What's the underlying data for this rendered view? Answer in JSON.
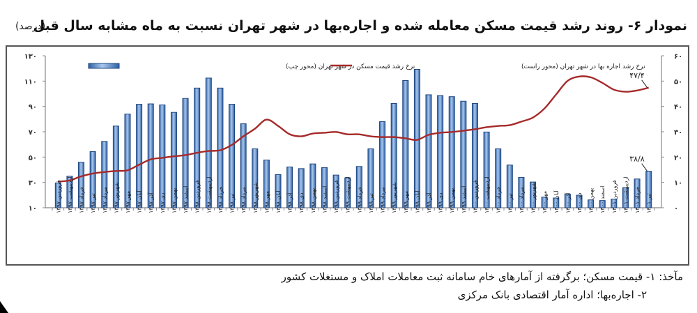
{
  "header": {
    "title": "نمودار ۶- روند رشد قیمت مسکن معامله شده و اجاره‌بها در شهر تهران نسبت به ماه مشابه سال قبل",
    "unit": "(درصد)"
  },
  "footer": {
    "source_line_1": "مآخذ: ۱- قیمت مسکن؛ برگرفته از آمارهای خام سامانه ثبت معاملات املاک و مستغلات کشور",
    "source_line_2": "۲- اجاره‌بها؛ اداره آمار اقتصادی بانک مرکزی"
  },
  "colors": {
    "bar_fill_dark": "#2e5fa3",
    "bar_fill_light": "#a9c8ee",
    "bar_stroke": "#1f4680",
    "line": "#a52a2a",
    "axis": "#888888",
    "text": "#222222"
  },
  "chart_data": {
    "type": "bar+line",
    "title": "نمودار ۶- روند رشد قیمت مسکن معامله شده و اجاره‌بها در شهر تهران نسبت به ماه مشابه سال قبل",
    "unit": "(درصد)",
    "xlabel": "",
    "ylabel_left": "نرخ رشد قیمت مسکن (محور چپ)",
    "ylabel_right": "نرخ رشد اجاره‌بها (محور راست)",
    "ylim_left": [
      10,
      130
    ],
    "ylim_right": [
      0,
      60
    ],
    "yticks_left": [
      "۱۰",
      "۳۰",
      "۵۰",
      "۷۰",
      "۹۰",
      "۱۱۰",
      "۱۳۰"
    ],
    "yticks_right": [
      "۰",
      "۱۰",
      "۲۰",
      "۳۰",
      "۴۰",
      "۵۰",
      "۶۰"
    ],
    "grid": false,
    "legend_position": "top",
    "categories": [
      "فروردین ۱۳۹۷",
      "اردیبهشت ۱۳۹۷",
      "خرداد ۱۳۹۷",
      "تیر ۱۳۹۷",
      "مرداد ۱۳۹۷",
      "شهریور ۱۳۹۷",
      "مهر ۱۳۹۷",
      "آبان ۱۳۹۷",
      "آذر ۱۳۹۷",
      "دی ۱۳۹۷",
      "بهمن ۱۳۹۷",
      "اسفند ۱۳۹۷",
      "فروردین ۱۳۹۸",
      "اردیبهشت ۱۳۹۸",
      "خرداد ۱۳۹۸",
      "تیر ۱۳۹۸",
      "مرداد ۱۳۹۸",
      "شهریور ۱۳۹۸",
      "مهر ۱۳۹۸",
      "آبان ۱۳۹۸",
      "آذر ۱۳۹۸",
      "دی ۱۳۹۸",
      "بهمن ۱۳۹۸",
      "اسفند ۱۳۹۸",
      "فروردین ۱۳۹۹",
      "اردیبهشت ۱۳۹۹",
      "خرداد ۱۳۹۹",
      "تیر ۱۳۹۹",
      "مرداد ۱۳۹۹",
      "شهریور ۱۳۹۹",
      "مهر ۱۳۹۹",
      "آبان ۱۳۹۹",
      "آذر ۱۳۹۹",
      "دی ۱۳۹۹",
      "بهمن ۱۳۹۹",
      "اسفند ۱۳۹۹",
      "فروردین ۱۴۰۰",
      "اردیبهشت ۱۴۰۰",
      "خرداد ۱۴۰۰",
      "تیر ۱۴۰۰",
      "مرداد ۱۴۰۰",
      "شهریور ۱۴۰۰",
      "مهر ۱۴۰۰",
      "آبان ۱۴۰۰",
      "آذر ۱۴۰۰",
      "دی ۱۴۰۰",
      "بهمن ۱۴۰۰",
      "اسفند ۱۴۰۰",
      "فروردین ۱۴۰۱",
      "اردیبهشت ۱۴۰۱",
      "خرداد ۱۴۰۱",
      "تیر ۱۴۰۱"
    ],
    "series": [
      {
        "name": "نرخ رشد قیمت مسکن در شهر تهران (محور چپ)",
        "type": "bar",
        "axis": "left",
        "values": [
          29.6,
          34.9,
          45.9,
          54.3,
          62.4,
          74.5,
          84.0,
          91.7,
          92.0,
          91.2,
          85.3,
          96.3,
          104.5,
          112.4,
          104.5,
          91.7,
          76.3,
          56.5,
          47.7,
          36.2,
          42.2,
          40.9,
          44.6,
          41.7,
          35.8,
          33.6,
          42.6,
          56.5,
          78.0,
          92.3,
          110.5,
          119.3,
          99.2,
          98.6,
          97.7,
          94.1,
          92.3,
          69.8,
          56.5,
          43.7,
          34.0,
          30.3,
          18.4,
          17.7,
          20.8,
          19.9,
          16.2,
          15.7,
          16.8,
          25.9,
          32.7,
          38.8
        ]
      },
      {
        "name": "نرخ رشد اجاره بها در شهر تهران (محور راست)",
        "type": "line",
        "axis": "right",
        "values": [
          10.3,
          10.8,
          12.4,
          13.5,
          14.1,
          14.5,
          14.8,
          17.0,
          19.1,
          19.7,
          20.3,
          20.8,
          21.7,
          22.4,
          22.7,
          24.8,
          28.2,
          31.2,
          34.8,
          32.3,
          29.0,
          28.2,
          29.3,
          29.6,
          29.9,
          29.0,
          29.0,
          28.2,
          27.9,
          27.9,
          27.4,
          26.8,
          28.8,
          29.6,
          29.9,
          30.4,
          31.0,
          31.8,
          32.3,
          32.6,
          34.0,
          35.6,
          39.2,
          44.7,
          50.1,
          51.8,
          51.5,
          49.3,
          46.6,
          45.8,
          46.3,
          47.4
        ]
      }
    ],
    "annotations": [
      {
        "label": "۴۷/۴",
        "series": 1,
        "index": 51
      },
      {
        "label": "۳۸/۸",
        "series": 0,
        "index": 51
      }
    ]
  }
}
